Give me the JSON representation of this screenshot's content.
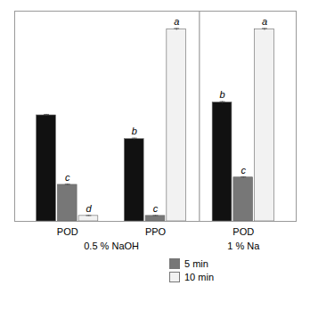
{
  "chart_data": {
    "type": "bar",
    "categories": [
      "POD",
      "PPO",
      "POD"
    ],
    "sections": [
      "0.5 % NaOH",
      "0.5 % NaOH",
      "1 % Na"
    ],
    "series": [
      {
        "name": null,
        "color": "#111111",
        "values": [
          58,
          45,
          65
        ],
        "errors": [
          0.5,
          0.5,
          0.5
        ],
        "annotations": [
          null,
          "b",
          "b"
        ]
      },
      {
        "name": "5 min",
        "color": "#777777",
        "values": [
          20,
          3,
          24
        ],
        "errors": [
          0.3,
          0.2,
          0.3
        ],
        "annotations": [
          "c",
          "c",
          "c"
        ]
      },
      {
        "name": "10 min",
        "color": "#f2f2f2",
        "values": [
          3,
          105,
          105
        ],
        "errors": [
          0.2,
          0.5,
          0.5
        ],
        "annotations": [
          "d",
          "a",
          "a"
        ]
      }
    ],
    "ylim": [
      0,
      115
    ],
    "yticks": [],
    "tick_labels": "x",
    "legend": "bottom"
  }
}
